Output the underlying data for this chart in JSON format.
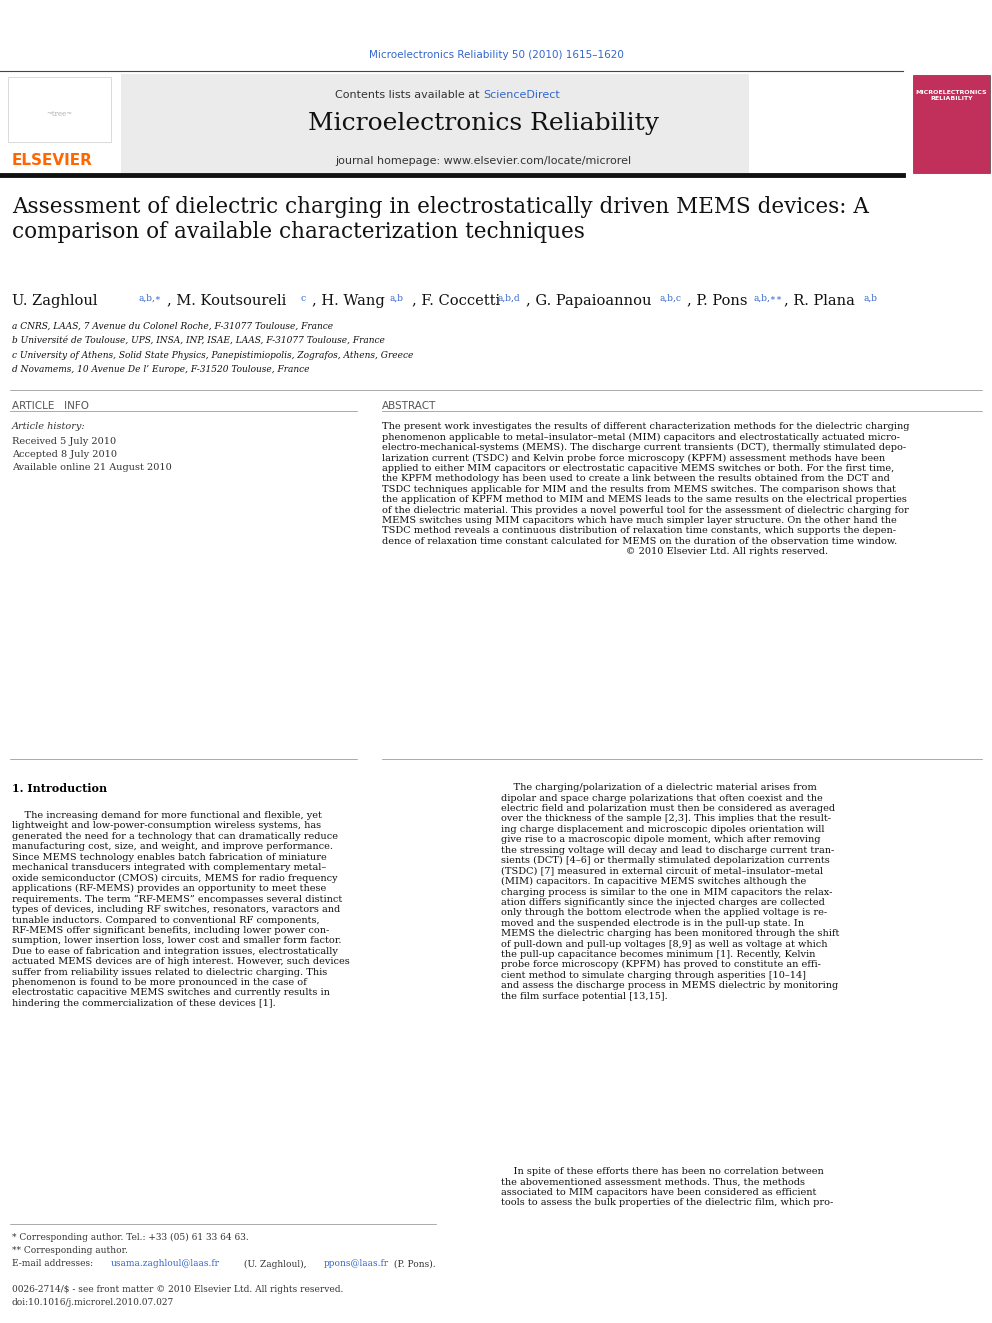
{
  "page_width": 9.92,
  "page_height": 13.23,
  "background_color": "#ffffff",
  "top_link": "Microelectronics Reliability 50 (2010) 1615–1620",
  "top_link_color": "#3366cc",
  "header_bg": "#e8e8e8",
  "journal_title": "Microelectronics Reliability",
  "journal_homepage": "journal homepage: www.elsevier.com/locate/microrel",
  "elsevier_color": "#ff6600",
  "article_title": "Assessment of dielectric charging in electrostatically driven MEMS devices: A\ncomparison of available characterization techniques",
  "affil_a": "a CNRS, LAAS, 7 Avenue du Colonel Roche, F-31077 Toulouse, France",
  "affil_b": "b Université de Toulouse, UPS, INSA, INP, ISAE, LAAS, F-31077 Toulouse, France",
  "affil_c": "c University of Athens, Solid State Physics, Panepistimiopolis, Zografos, Athens, Greece",
  "affil_d": "d Novamems, 10 Avenue De l’ Europe, F-31520 Toulouse, France",
  "article_info_header": "ARTICLE   INFO",
  "abstract_header": "ABSTRACT",
  "article_history_label": "Article history:",
  "received": "Received 5 July 2010",
  "accepted": "Accepted 8 July 2010",
  "available": "Available online 21 August 2010",
  "abstract_text": "The present work investigates the results of different characterization methods for the dielectric charging\nphenomenon applicable to metal–insulator–metal (MIM) capacitors and electrostatically actuated micro-\nelectro-mechanical-systems (MEMS). The discharge current transients (DCT), thermally stimulated depo-\nlarization current (TSDC) and Kelvin probe force microscopy (KPFM) assessment methods have been\napplied to either MIM capacitors or electrostatic capacitive MEMS switches or both. For the first time,\nthe KPFM methodology has been used to create a link between the results obtained from the DCT and\nTSDC techniques applicable for MIM and the results from MEMS switches. The comparison shows that\nthe application of KPFM method to MIM and MEMS leads to the same results on the electrical properties\nof the dielectric material. This provides a novel powerful tool for the assessment of dielectric charging for\nMEMS switches using MIM capacitors which have much simpler layer structure. On the other hand the\nTSDC method reveals a continuous distribution of relaxation time constants, which supports the depen-\ndence of relaxation time constant calculated for MEMS on the duration of the observation time window.\n                                                                              © 2010 Elsevier Ltd. All rights reserved.",
  "intro_header": "1. Introduction",
  "intro_left": "    The increasing demand for more functional and flexible, yet\nlightweight and low-power-consumption wireless systems, has\ngenerated the need for a technology that can dramatically reduce\nmanufacturing cost, size, and weight, and improve performance.\nSince MEMS technology enables batch fabrication of miniature\nmechanical transducers integrated with complementary metal–\noxide semiconductor (CMOS) circuits, MEMS for radio frequency\napplications (RF-MEMS) provides an opportunity to meet these\nrequirements. The term “RF-MEMS” encompasses several distinct\ntypes of devices, including RF switches, resonators, varactors and\ntunable inductors. Compared to conventional RF components,\nRF-MEMS offer significant benefits, including lower power con-\nsumption, lower insertion loss, lower cost and smaller form factor.\nDue to ease of fabrication and integration issues, electrostatically\nactuated MEMS devices are of high interest. However, such devices\nsuffer from reliability issues related to dielectric charging. This\nphenomenon is found to be more pronounced in the case of\nelectrostatic capacitive MEMS switches and currently results in\nhindering the commercialization of these devices [1].",
  "intro_right": "    The charging/polarization of a dielectric material arises from\ndipolar and space charge polarizations that often coexist and the\nelectric field and polarization must then be considered as averaged\nover the thickness of the sample [2,3]. This implies that the result-\ning charge displacement and microscopic dipoles orientation will\ngive rise to a macroscopic dipole moment, which after removing\nthe stressing voltage will decay and lead to discharge current tran-\nsients (DCT) [4–6] or thermally stimulated depolarization currents\n(TSDC) [7] measured in external circuit of metal–insulator–metal\n(MIM) capacitors. In capacitive MEMS switches although the\ncharging process is similar to the one in MIM capacitors the relax-\nation differs significantly since the injected charges are collected\nonly through the bottom electrode when the applied voltage is re-\nmoved and the suspended electrode is in the pull-up state. In\nMEMS the dielectric charging has been monitored through the shift\nof pull-down and pull-up voltages [8,9] as well as voltage at which\nthe pull-up capacitance becomes minimum [1]. Recently, Kelvin\nprobe force microscopy (KPFM) has proved to constitute an effi-\ncient method to simulate charging through asperities [10–14]\nand assess the discharge process in MEMS dielectric by monitoring\nthe film surface potential [13,15].",
  "in_spite": "    In spite of these efforts there has been no correlation between\nthe abovementioned assessment methods. Thus, the methods\nassociated to MIM capacitors have been considered as efficient\ntools to assess the bulk properties of the dielectric film, which pro-",
  "footer_star": "* Corresponding author. Tel.: +33 (05) 61 33 64 63.",
  "footer_starstar": "** Corresponding author.",
  "footer_email1": "usama.zaghloul@laas.fr",
  "footer_email2": "ppons@laas.fr",
  "issn": "0026-2714/$ - see front matter © 2010 Elsevier Ltd. All rights reserved.",
  "doi": "doi:10.1016/j.microrel.2010.07.027"
}
